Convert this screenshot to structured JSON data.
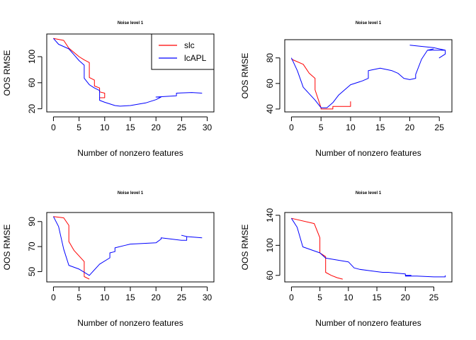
{
  "colors": {
    "slc": "#ff0000",
    "lcAPL": "#0000ff",
    "axis": "#000000"
  },
  "chart_data": [
    {
      "type": "line",
      "title": "Noise level 1",
      "xlabel": "Number of nonzero features",
      "ylabel": "OOS RMSE",
      "xlim": [
        0,
        30
      ],
      "ylim": [
        20,
        130
      ],
      "xticks": [
        0,
        5,
        10,
        15,
        20,
        25,
        30
      ],
      "yticks": [
        20,
        60,
        100
      ],
      "legend": {
        "position": "top-right",
        "entries": [
          "slc",
          "lcAPL"
        ]
      },
      "series": [
        {
          "name": "slc",
          "points": [
            [
              0,
              128
            ],
            [
              2,
              125
            ],
            [
              3,
              113
            ],
            [
              5,
              100
            ],
            [
              6,
              95
            ],
            [
              7,
              91
            ],
            [
              7,
              68
            ],
            [
              8,
              64
            ],
            [
              8,
              55
            ],
            [
              9,
              52
            ],
            [
              9,
              46
            ],
            [
              10,
              44
            ],
            [
              10,
              37
            ],
            [
              9,
              37
            ]
          ]
        },
        {
          "name": "lcAPL",
          "points": [
            [
              0,
              128
            ],
            [
              1,
              119
            ],
            [
              3,
              112
            ],
            [
              4,
              103
            ],
            [
              5,
              94
            ],
            [
              6,
              87
            ],
            [
              6,
              67
            ],
            [
              7,
              57
            ],
            [
              8,
              52
            ],
            [
              9,
              48
            ],
            [
              9,
              33
            ],
            [
              10,
              30
            ],
            [
              12,
              25
            ],
            [
              13,
              24
            ],
            [
              15,
              25
            ],
            [
              18,
              29
            ],
            [
              20,
              34
            ],
            [
              21,
              38
            ],
            [
              20,
              38
            ],
            [
              24,
              40
            ],
            [
              24,
              44
            ],
            [
              27,
              45
            ],
            [
              29,
              44
            ]
          ]
        }
      ]
    },
    {
      "type": "line",
      "title": "Noise level 1",
      "xlabel": "Number of nonzero features",
      "ylabel": "OOS RMSE",
      "xlim": [
        0,
        26
      ],
      "ylim": [
        40,
        92
      ],
      "xticks": [
        0,
        5,
        10,
        15,
        20,
        25
      ],
      "yticks": [
        40,
        60,
        80
      ],
      "series": [
        {
          "name": "slc",
          "points": [
            [
              0,
              79
            ],
            [
              2,
              75
            ],
            [
              3,
              68
            ],
            [
              4,
              64
            ],
            [
              4,
              55
            ],
            [
              5,
              41
            ],
            [
              5,
              40
            ],
            [
              7,
              40
            ],
            [
              7,
              42
            ],
            [
              10,
              42
            ],
            [
              10,
              46
            ]
          ]
        },
        {
          "name": "lcAPL",
          "points": [
            [
              0,
              80
            ],
            [
              1,
              70
            ],
            [
              2,
              57
            ],
            [
              3,
              52
            ],
            [
              4,
              47
            ],
            [
              5,
              41
            ],
            [
              6,
              41
            ],
            [
              7,
              45
            ],
            [
              8,
              51
            ],
            [
              10,
              59
            ],
            [
              12,
              62
            ],
            [
              13,
              64
            ],
            [
              13,
              70
            ],
            [
              15,
              72
            ],
            [
              17,
              70
            ],
            [
              18,
              68
            ],
            [
              19,
              64
            ],
            [
              20,
              63
            ],
            [
              21,
              64
            ],
            [
              21,
              67
            ],
            [
              22,
              79
            ],
            [
              23,
              86
            ],
            [
              24,
              87
            ],
            [
              23,
              86
            ],
            [
              26,
              86
            ],
            [
              26,
              83
            ],
            [
              25,
              80
            ],
            [
              26,
              83
            ],
            [
              26,
              86
            ],
            [
              24,
              88
            ],
            [
              22,
              89
            ],
            [
              20,
              90
            ]
          ]
        }
      ]
    },
    {
      "type": "line",
      "title": "Noise level 1",
      "xlabel": "Number of nonzero features",
      "ylabel": "OOS RMSE",
      "xlim": [
        0,
        30
      ],
      "ylim": [
        44,
        95
      ],
      "xticks": [
        0,
        5,
        10,
        15,
        20,
        25,
        30
      ],
      "yticks": [
        50,
        70,
        90
      ],
      "series": [
        {
          "name": "slc",
          "points": [
            [
              0,
              94
            ],
            [
              2,
              93
            ],
            [
              3,
              87
            ],
            [
              3,
              74
            ],
            [
              4,
              67
            ],
            [
              6,
              58
            ],
            [
              6,
              46
            ],
            [
              7,
              44
            ]
          ]
        },
        {
          "name": "lcAPL",
          "points": [
            [
              0,
              94
            ],
            [
              1,
              86
            ],
            [
              2,
              68
            ],
            [
              3,
              55
            ],
            [
              5,
              52
            ],
            [
              7,
              47
            ],
            [
              9,
              56
            ],
            [
              11,
              61
            ],
            [
              11,
              65
            ],
            [
              12,
              66
            ],
            [
              12,
              69
            ],
            [
              14,
              71
            ],
            [
              15,
              72
            ],
            [
              20,
              73
            ],
            [
              21,
              76
            ],
            [
              21,
              77
            ],
            [
              23,
              76
            ],
            [
              25,
              75
            ],
            [
              26,
              75
            ],
            [
              26,
              78
            ],
            [
              25,
              79
            ],
            [
              26,
              78
            ],
            [
              29,
              77
            ]
          ]
        }
      ]
    },
    {
      "type": "line",
      "title": "Noise level 1",
      "xlabel": "Number of nonzero features",
      "ylabel": "OOS RMSE",
      "xlim": [
        0,
        27
      ],
      "ylim": [
        55,
        140
      ],
      "xticks": [
        0,
        5,
        10,
        15,
        20,
        25
      ],
      "yticks": [
        60,
        100,
        140
      ],
      "series": [
        {
          "name": "slc",
          "points": [
            [
              0,
              136
            ],
            [
              4,
              129
            ],
            [
              5,
              110
            ],
            [
              5,
              90
            ],
            [
              6,
              85
            ],
            [
              6,
              64
            ],
            [
              7,
              60
            ],
            [
              8,
              57
            ],
            [
              9,
              55
            ]
          ]
        },
        {
          "name": "lcAPL",
          "points": [
            [
              0,
              136
            ],
            [
              1,
              124
            ],
            [
              2,
              98
            ],
            [
              5,
              90
            ],
            [
              6,
              83
            ],
            [
              10,
              78
            ],
            [
              11,
              70
            ],
            [
              12,
              68
            ],
            [
              15,
              65
            ],
            [
              16,
              64
            ],
            [
              17,
              64
            ],
            [
              20,
              62
            ],
            [
              20,
              60
            ],
            [
              21,
              60
            ],
            [
              20,
              59
            ],
            [
              22,
              59
            ],
            [
              25,
              58
            ],
            [
              27,
              58
            ],
            [
              27,
              60
            ]
          ]
        }
      ]
    }
  ]
}
